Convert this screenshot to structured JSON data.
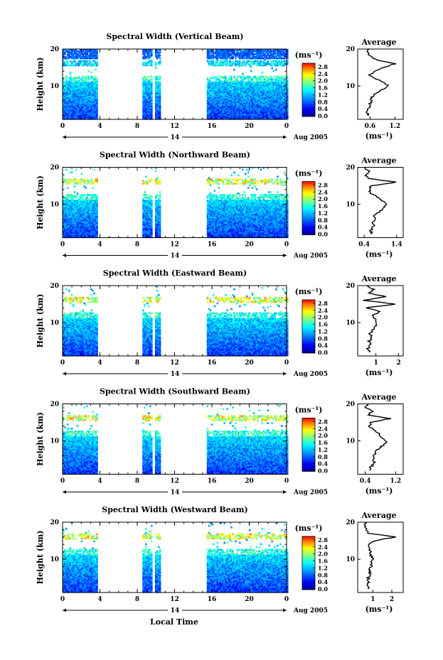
{
  "figure": {
    "xlabel": "Local Time",
    "date_label": "14",
    "month_label": "Aug 2005"
  },
  "chart_data": [
    {
      "type": "heatmap",
      "title": "Spectral Width (Vertical Beam)",
      "ylabel": "Height (km)",
      "xlim": [
        0,
        24
      ],
      "ylim": [
        1,
        20
      ],
      "xticks": [
        "0",
        "4",
        "8",
        "12",
        "16",
        "20",
        "0"
      ],
      "yticks": [
        "10",
        "20"
      ],
      "data_gaps_hours": [
        [
          3.7,
          8.6
        ],
        [
          9.6,
          9.9
        ],
        [
          10.5,
          15.4
        ]
      ],
      "colorbar": {
        "unit": "(ms⁻¹)",
        "ticks": [
          "0.0",
          "0.4",
          "0.8",
          "1.2",
          "1.6",
          "2.0",
          "2.4",
          "2.8"
        ]
      },
      "profile": {
        "title": "Average",
        "xlabel": "(ms⁻¹)",
        "xticks": [
          "0.6",
          "1.2"
        ],
        "xlim": [
          0.3,
          1.4
        ],
        "yticks": [
          "10",
          "20"
        ],
        "height_km": [
          2,
          3,
          4,
          5,
          6,
          7,
          8,
          9,
          10,
          11,
          12,
          13,
          14,
          15,
          16,
          17,
          18,
          19,
          20
        ],
        "width_ms": [
          0.55,
          0.52,
          0.58,
          0.6,
          0.62,
          0.65,
          0.72,
          0.9,
          1.05,
          0.9,
          0.75,
          0.6,
          0.7,
          0.9,
          1.2,
          0.75,
          0.6,
          0.55,
          0.58
        ]
      }
    },
    {
      "type": "heatmap",
      "title": "Spectral Width (Northward Beam)",
      "ylabel": "Height (km)",
      "xlim": [
        0,
        24
      ],
      "ylim": [
        1,
        20
      ],
      "xticks": [
        "0",
        "4",
        "8",
        "12",
        "16",
        "20",
        "0"
      ],
      "yticks": [
        "10",
        "20"
      ],
      "data_gaps_hours": [
        [
          3.7,
          8.6
        ],
        [
          9.6,
          9.9
        ],
        [
          10.5,
          15.4
        ]
      ],
      "colorbar": {
        "unit": "(ms⁻¹)",
        "ticks": [
          "0.0",
          "0.4",
          "0.8",
          "1.2",
          "1.6",
          "2.0",
          "2.4",
          "2.8"
        ]
      },
      "profile": {
        "title": "Average",
        "xlabel": "(ms⁻¹)",
        "xticks": [
          "0.4",
          "1.4"
        ],
        "xlim": [
          0.2,
          1.6
        ],
        "yticks": [
          "10",
          "20"
        ],
        "height_km": [
          2,
          3,
          4,
          5,
          6,
          7,
          8,
          9,
          10,
          11,
          12,
          13,
          14,
          15,
          16,
          17,
          18,
          19,
          20
        ],
        "width_ms": [
          0.65,
          0.6,
          0.7,
          0.65,
          0.75,
          0.7,
          0.85,
          1.0,
          1.1,
          0.95,
          0.8,
          0.6,
          0.55,
          0.6,
          1.4,
          0.5,
          0.45,
          0.55,
          0.4
        ]
      }
    },
    {
      "type": "heatmap",
      "title": "Spectral Width (Eastward Beam)",
      "ylabel": "Height (km)",
      "xlim": [
        0,
        24
      ],
      "ylim": [
        1,
        20
      ],
      "xticks": [
        "0",
        "4",
        "8",
        "12",
        "16",
        "20",
        "0"
      ],
      "yticks": [
        "10",
        "20"
      ],
      "data_gaps_hours": [
        [
          3.7,
          8.6
        ],
        [
          9.6,
          9.9
        ],
        [
          10.5,
          15.4
        ]
      ],
      "colorbar": {
        "unit": "(ms⁻¹)",
        "ticks": [
          "0.0",
          "0.4",
          "0.8",
          "1.2",
          "1.6",
          "2.0",
          "2.4",
          "2.8"
        ]
      },
      "profile": {
        "title": "Average",
        "xlabel": "(ms⁻¹)",
        "xticks": [
          "1",
          "2"
        ],
        "xlim": [
          0.2,
          2.2
        ],
        "yticks": [
          "10",
          "20"
        ],
        "height_km": [
          2,
          3,
          4,
          5,
          6,
          7,
          8,
          9,
          10,
          11,
          12,
          13,
          14,
          15,
          16,
          17,
          18,
          19,
          20
        ],
        "width_ms": [
          0.7,
          0.65,
          0.75,
          0.7,
          0.8,
          0.75,
          0.85,
          1.0,
          1.05,
          0.95,
          0.9,
          1.2,
          0.6,
          1.8,
          0.5,
          1.4,
          0.7,
          0.9,
          0.6
        ]
      }
    },
    {
      "type": "heatmap",
      "title": "Spectral Width (Southward Beam)",
      "ylabel": "Height (km)",
      "xlim": [
        0,
        24
      ],
      "ylim": [
        1,
        20
      ],
      "xticks": [
        "0",
        "4",
        "8",
        "12",
        "16",
        "20",
        "0"
      ],
      "yticks": [
        "10",
        "20"
      ],
      "data_gaps_hours": [
        [
          3.7,
          8.6
        ],
        [
          9.6,
          9.9
        ],
        [
          10.5,
          15.4
        ]
      ],
      "colorbar": {
        "unit": "(ms⁻¹)",
        "ticks": [
          "0.0",
          "0.4",
          "0.8",
          "1.2",
          "1.6",
          "2.0",
          "2.4",
          "2.8"
        ]
      },
      "profile": {
        "title": "Average",
        "xlabel": "(ms⁻¹)",
        "xticks": [
          "0.4",
          "1.2"
        ],
        "xlim": [
          0.2,
          1.4
        ],
        "yticks": [
          "10",
          "20"
        ],
        "height_km": [
          2,
          3,
          4,
          5,
          6,
          7,
          8,
          9,
          10,
          11,
          12,
          13,
          14,
          15,
          16,
          17,
          18,
          19,
          20
        ],
        "width_ms": [
          0.5,
          0.55,
          0.65,
          0.6,
          0.62,
          0.68,
          0.75,
          0.9,
          0.95,
          0.85,
          0.75,
          0.6,
          0.5,
          0.55,
          1.05,
          0.45,
          0.6,
          0.4,
          0.45
        ]
      }
    },
    {
      "type": "heatmap",
      "title": "Spectral Width (Westward Beam)",
      "ylabel": "Height (km)",
      "xlim": [
        0,
        24
      ],
      "ylim": [
        1,
        20
      ],
      "xticks": [
        "0",
        "4",
        "8",
        "12",
        "16",
        "20",
        "0"
      ],
      "yticks": [
        "10",
        "20"
      ],
      "data_gaps_hours": [
        [
          3.7,
          8.6
        ],
        [
          9.6,
          9.9
        ],
        [
          10.5,
          15.4
        ]
      ],
      "colorbar": {
        "unit": "(ms⁻¹)",
        "ticks": [
          "0.0",
          "0.4",
          "0.8",
          "1.2",
          "1.6",
          "2.0",
          "2.4",
          "2.8"
        ]
      },
      "profile": {
        "title": "Average",
        "xlabel": "(ms⁻¹)",
        "xticks": [
          "1",
          "2"
        ],
        "xlim": [
          0.2,
          2.6
        ],
        "yticks": [
          "10",
          "20"
        ],
        "height_km": [
          2,
          3,
          4,
          5,
          6,
          7,
          8,
          9,
          10,
          11,
          12,
          13,
          14,
          15,
          16,
          17,
          18,
          19,
          20
        ],
        "width_ms": [
          0.75,
          0.7,
          0.8,
          0.75,
          0.85,
          0.8,
          0.9,
          0.95,
          1.0,
          0.9,
          0.85,
          0.8,
          0.75,
          1.1,
          2.2,
          0.7,
          0.65,
          0.6,
          0.6
        ]
      }
    }
  ]
}
